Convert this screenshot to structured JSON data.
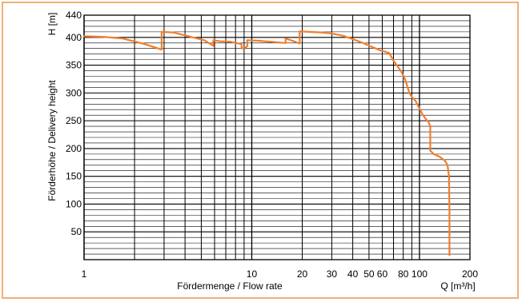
{
  "chart_data": {
    "type": "line",
    "title": "",
    "xlabel": "Fördermenge / Flow rate",
    "xunit": "Q [m³/h]",
    "ylabel": "Förderhöhe / Delivery height",
    "yunit": "H [m]",
    "xscale": "log",
    "xlim": [
      1,
      200
    ],
    "ylim": [
      0,
      440
    ],
    "x_ticks": [
      1,
      10,
      20,
      30,
      40,
      50,
      60,
      80,
      100,
      200
    ],
    "x_tick_labels": [
      "1",
      "10",
      "20",
      "30",
      "40",
      "50",
      "60",
      "80",
      "100",
      "200"
    ],
    "y_ticks": [
      50,
      100,
      150,
      200,
      250,
      300,
      350,
      400,
      440
    ],
    "y_tick_labels": [
      "50",
      "100",
      "150",
      "200",
      "250",
      "300",
      "350",
      "400",
      "440"
    ],
    "grid": true,
    "line_color": "#f07e2c",
    "series": [
      {
        "x": [
          1.0,
          1.3,
          1.7,
          2.3,
          2.9,
          2.9,
          3.4,
          4.2,
          5.2,
          5.9,
          5.9,
          6.5,
          7.5,
          8.7,
          8.7,
          9.2,
          9.4,
          9.4,
          11,
          13,
          15.9,
          15.9,
          17.5,
          19.3,
          19.3,
          22,
          26,
          30,
          35,
          40,
          46,
          52,
          58,
          66,
          68,
          70,
          74,
          78,
          82,
          85,
          87,
          90,
          95,
          100,
          104,
          108,
          113,
          116,
          116,
          122,
          132,
          142,
          147,
          150,
          151,
          151
        ],
        "y": [
          402,
          401,
          398,
          388,
          378,
          410,
          409,
          402,
          395,
          385,
          395,
          393,
          392,
          388,
          380,
          382,
          384,
          395,
          394,
          392,
          390,
          398,
          394,
          389,
          411,
          410,
          409,
          407,
          403,
          397,
          390,
          383,
          377,
          372,
          365,
          358,
          348,
          338,
          325,
          310,
          300,
          293,
          285,
          272,
          262,
          255,
          248,
          240,
          196,
          190,
          185,
          178,
          170,
          150,
          90,
          8
        ]
      }
    ]
  }
}
